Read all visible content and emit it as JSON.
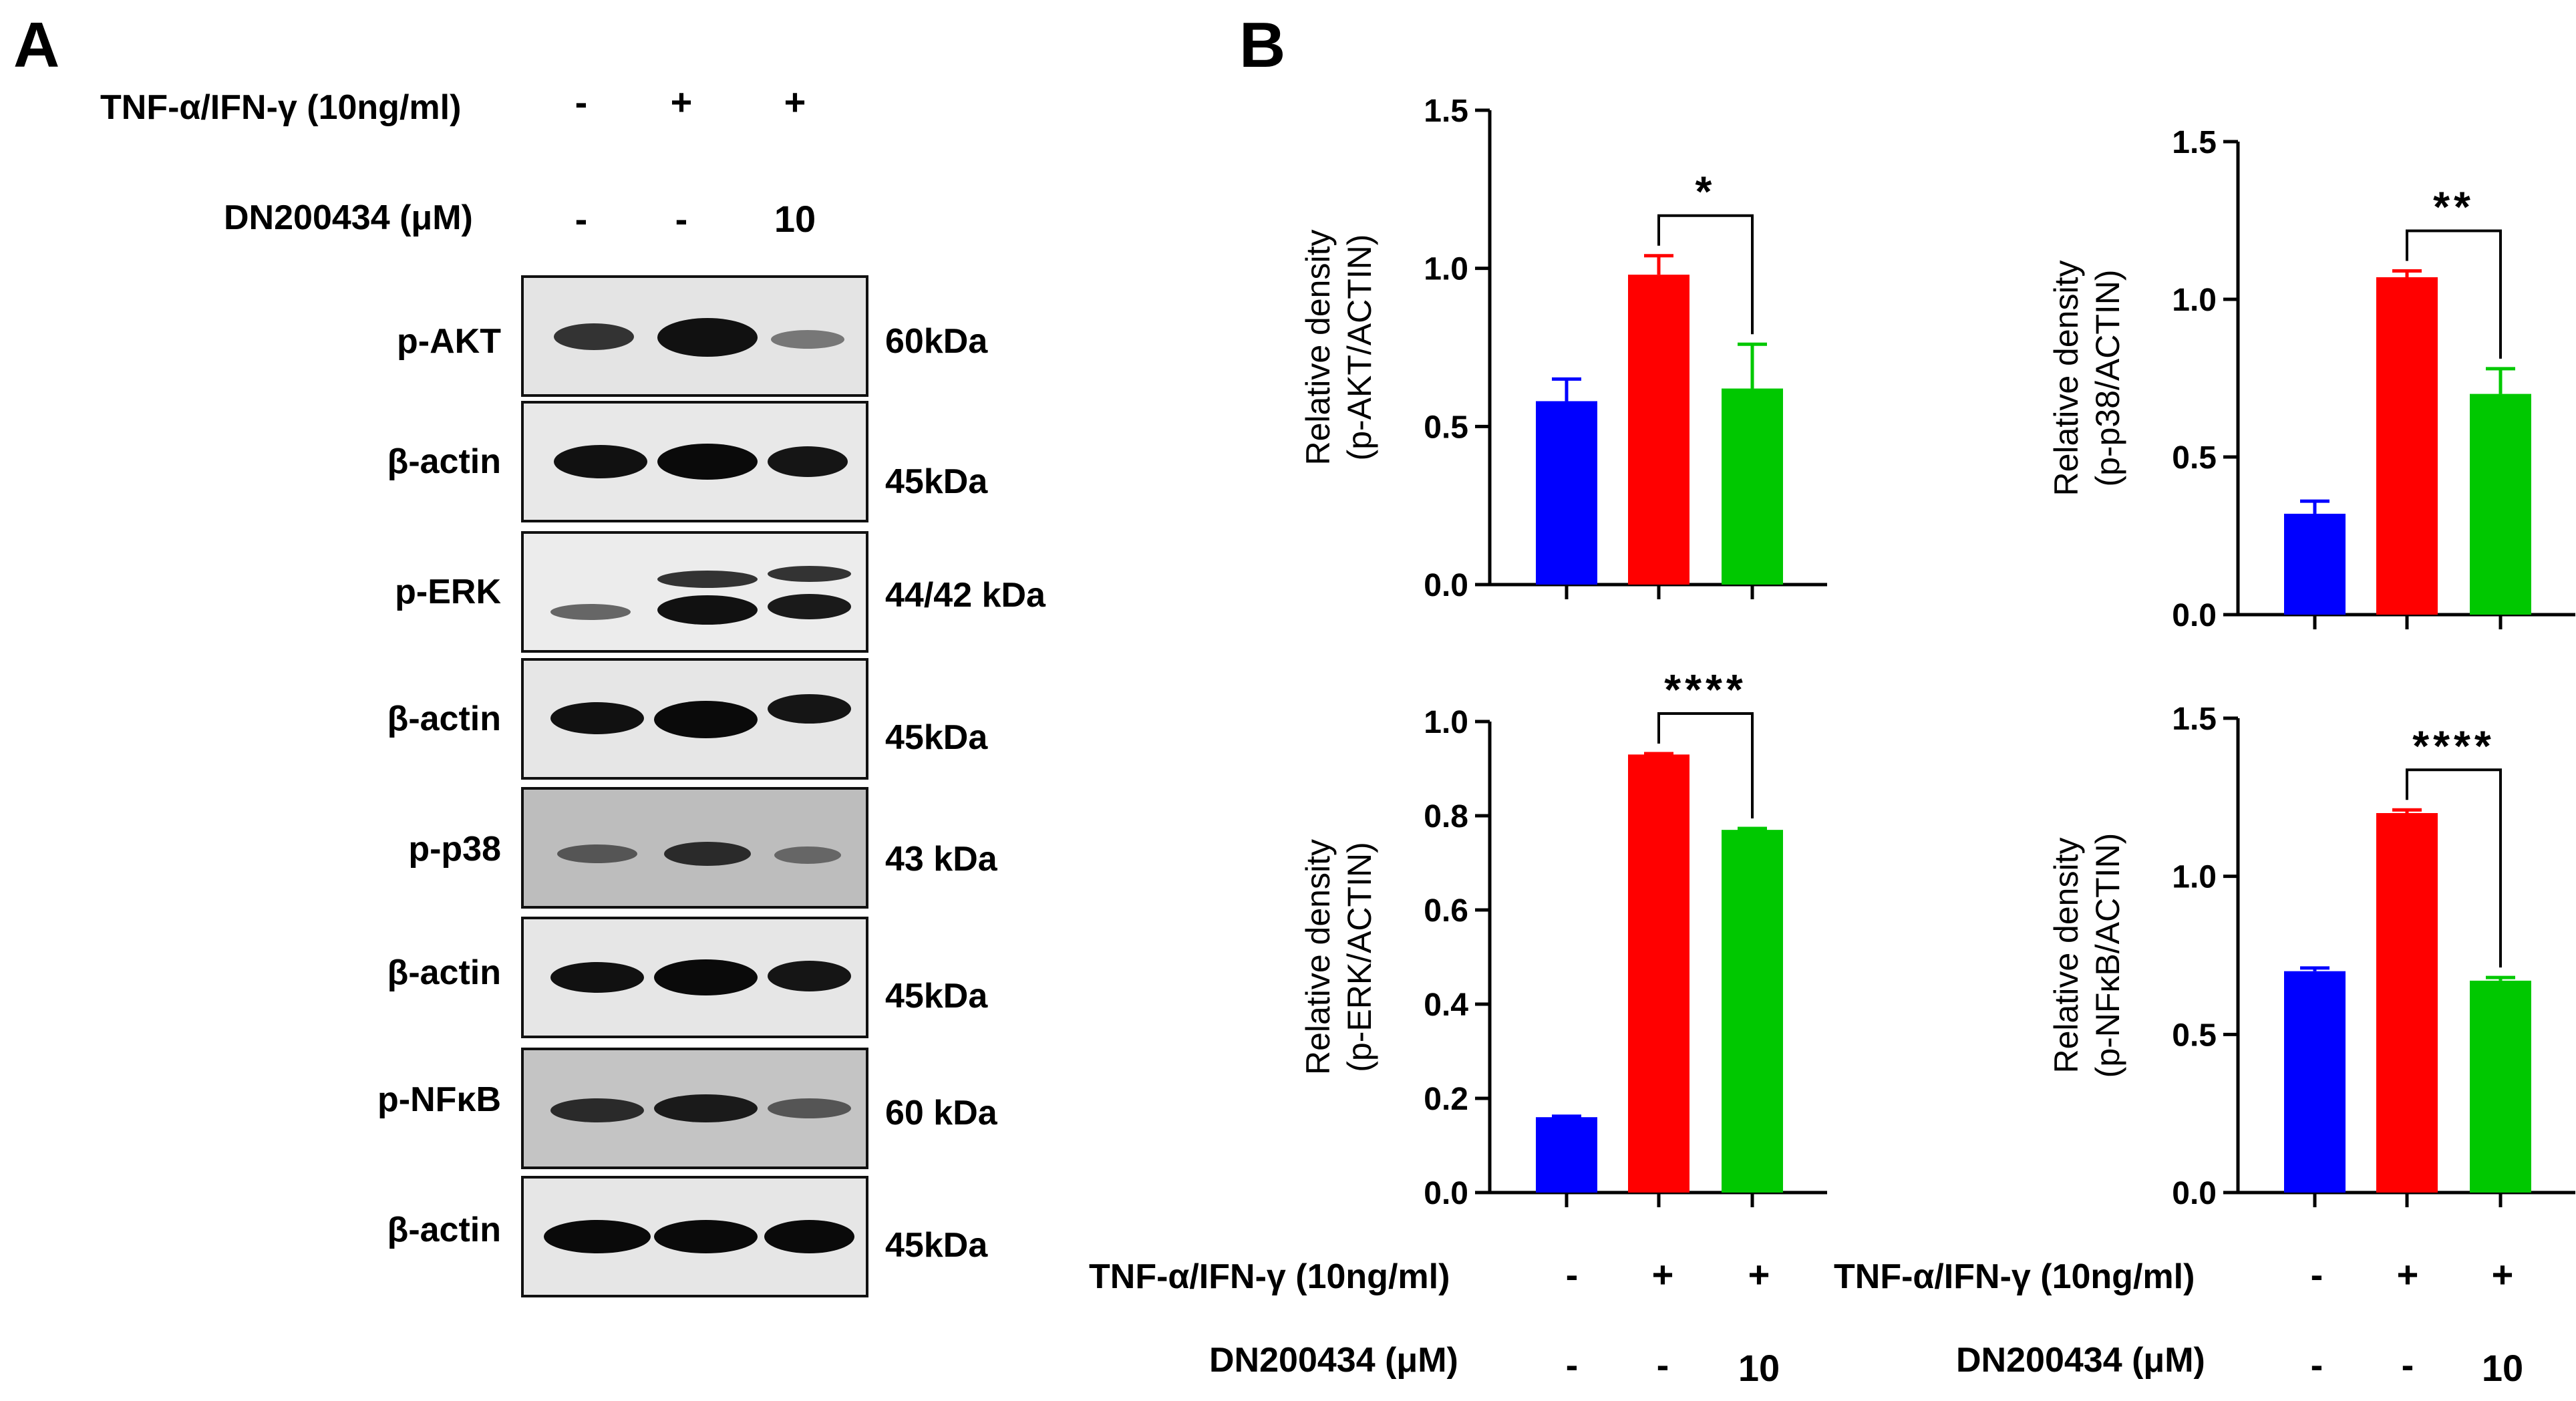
{
  "panelA": {
    "letter": "A",
    "treatment_label": "TNF-α/IFN-γ (10ng/ml)",
    "treatment_marks": [
      "-",
      "+",
      "+"
    ],
    "dose_label": "DN200434 (μM)",
    "dose_marks": [
      "-",
      "-",
      "10"
    ],
    "blots": [
      {
        "label": "p-AKT",
        "kda": "60kDa"
      },
      {
        "label": "β-actin",
        "kda": "45kDa"
      },
      {
        "label": "p-ERK",
        "kda": "44/42 kDa"
      },
      {
        "label": "β-actin",
        "kda": "45kDa"
      },
      {
        "label": "p-p38",
        "kda": "43 kDa"
      },
      {
        "label": "β-actin",
        "kda": "45kDa"
      },
      {
        "label": "p-NFκB",
        "kda": "60 kDa"
      },
      {
        "label": "β-actin",
        "kda": "45kDa"
      }
    ]
  },
  "panelB": {
    "letter": "B",
    "treatment_label": "TNF-α/IFN-γ (10ng/ml)",
    "treatment_marks": [
      "-",
      "+",
      "+"
    ],
    "dose_label": "DN200434 (μM)",
    "dose_marks": [
      "-",
      "-",
      "10"
    ]
  },
  "colors": {
    "control": "#0000ff",
    "tnf_ifn": "#ff0000",
    "dn200434": "#00c800"
  },
  "chart_data": [
    {
      "type": "bar",
      "ylabel_line1": "Relative density",
      "ylabel_line2": "(p-AKT/ACTIN)",
      "ylim": [
        0,
        1.5
      ],
      "yticks": [
        "0.0",
        "0.5",
        "1.0",
        "1.5"
      ],
      "values": [
        0.58,
        0.98,
        0.62
      ],
      "errors": [
        0.07,
        0.06,
        0.14
      ],
      "significance": "*"
    },
    {
      "type": "bar",
      "ylabel_line1": "Relative density",
      "ylabel_line2": "(p-p38/ACTIN)",
      "ylim": [
        0,
        1.5
      ],
      "yticks": [
        "0.0",
        "0.5",
        "1.0",
        "1.5"
      ],
      "values": [
        0.32,
        1.07,
        0.7
      ],
      "errors": [
        0.04,
        0.02,
        0.08
      ],
      "significance": "**"
    },
    {
      "type": "bar",
      "ylabel_line1": "Relative density",
      "ylabel_line2": "(p-ERK/ACTIN)",
      "ylim": [
        0,
        1.0
      ],
      "yticks": [
        "0.0",
        "0.2",
        "0.4",
        "0.6",
        "0.8",
        "1.0"
      ],
      "values": [
        0.16,
        0.93,
        0.77
      ],
      "errors": [
        0.002,
        0.002,
        0.003
      ],
      "significance": "****"
    },
    {
      "type": "bar",
      "ylabel_line1": "Relative density",
      "ylabel_line2": "(p-NFκB/ACTIN)",
      "ylim": [
        0,
        1.5
      ],
      "yticks": [
        "0.0",
        "0.5",
        "1.0",
        "1.5"
      ],
      "values": [
        0.7,
        1.2,
        0.67
      ],
      "errors": [
        0.01,
        0.01,
        0.01
      ],
      "significance": "****"
    }
  ]
}
